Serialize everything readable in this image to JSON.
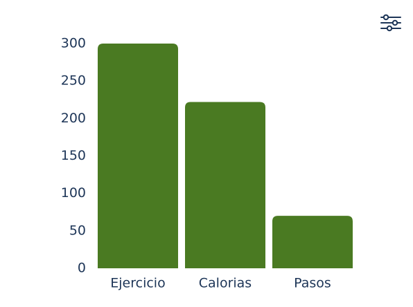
{
  "toolbar": {
    "filter_icon": "sliders-icon"
  },
  "colors": {
    "bar": "#4a7a22",
    "text": "#1d3557",
    "icon": "#1d3557",
    "background": "#ffffff"
  },
  "chart_data": {
    "type": "bar",
    "title": "",
    "xlabel": "",
    "ylabel": "",
    "categories": [
      "Ejercicio",
      "Calorias",
      "Pasos"
    ],
    "values": [
      300,
      222,
      70
    ],
    "ylim": [
      0,
      300
    ],
    "yticks": [
      0,
      50,
      100,
      150,
      200,
      250,
      300
    ],
    "grid": false,
    "legend": "none"
  }
}
